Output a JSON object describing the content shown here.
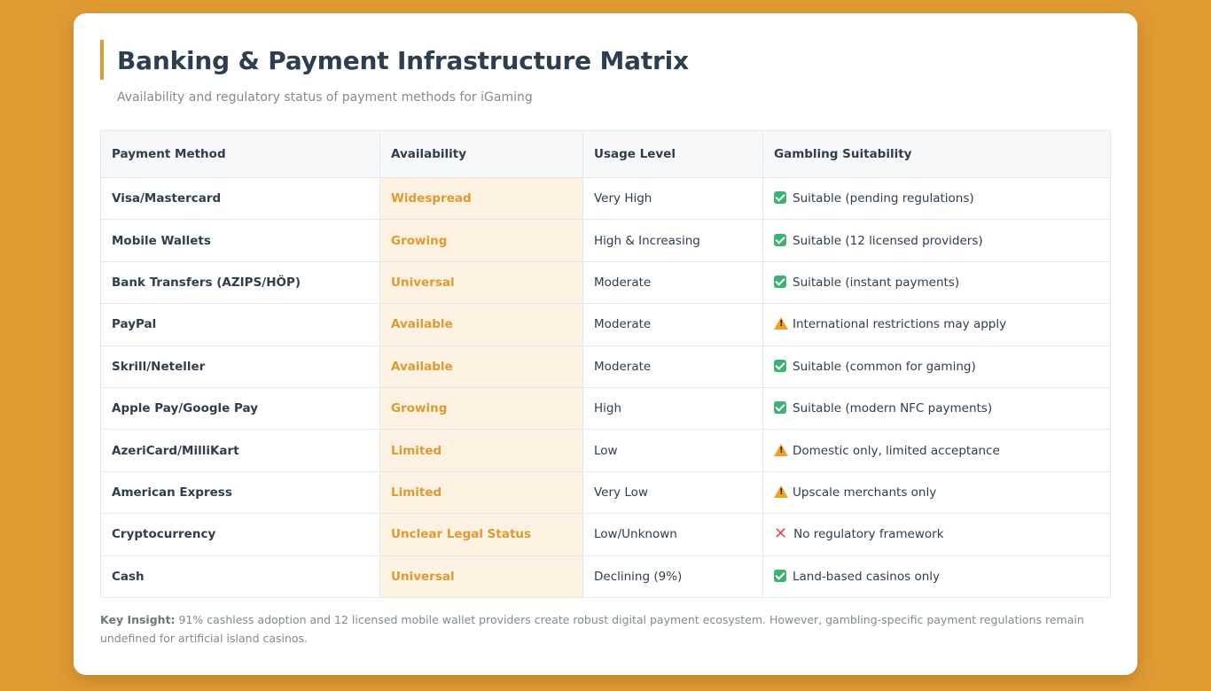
{
  "header": {
    "title": "Banking & Payment Infrastructure Matrix",
    "subtitle": "Availability and regulatory status of payment methods for iGaming"
  },
  "colors": {
    "background": "#df9a33",
    "accent": "#df9a33",
    "availability_bg": "#fdf1e1",
    "suitable": "#3cb371",
    "warning": "#f0a12a",
    "unsuitable": "#e8475f"
  },
  "table": {
    "headers": [
      "Payment Method",
      "Availability",
      "Usage Level",
      "Gambling Suitability"
    ],
    "rows": [
      {
        "method": "Visa/Mastercard",
        "availability": "Widespread",
        "usage": "Very High",
        "status_icon": "check-icon",
        "suitability": "Suitable (pending regulations)"
      },
      {
        "method": "Mobile Wallets",
        "availability": "Growing",
        "usage": "High & Increasing",
        "status_icon": "check-icon",
        "suitability": "Suitable (12 licensed providers)"
      },
      {
        "method": "Bank Transfers (AZIPS/HÖP)",
        "availability": "Universal",
        "usage": "Moderate",
        "status_icon": "check-icon",
        "suitability": "Suitable (instant payments)"
      },
      {
        "method": "PayPal",
        "availability": "Available",
        "usage": "Moderate",
        "status_icon": "warning-icon",
        "suitability": "International restrictions may apply"
      },
      {
        "method": "Skrill/Neteller",
        "availability": "Available",
        "usage": "Moderate",
        "status_icon": "check-icon",
        "suitability": "Suitable (common for gaming)"
      },
      {
        "method": "Apple Pay/Google Pay",
        "availability": "Growing",
        "usage": "High",
        "status_icon": "check-icon",
        "suitability": "Suitable (modern NFC payments)"
      },
      {
        "method": "AzeriCard/MilliKart",
        "availability": "Limited",
        "usage": "Low",
        "status_icon": "warning-icon",
        "suitability": "Domestic only, limited acceptance"
      },
      {
        "method": "American Express",
        "availability": "Limited",
        "usage": "Very Low",
        "status_icon": "warning-icon",
        "suitability": "Upscale merchants only"
      },
      {
        "method": "Cryptocurrency",
        "availability": "Unclear Legal Status",
        "usage": "Low/Unknown",
        "status_icon": "cross-icon",
        "suitability": "No regulatory framework"
      },
      {
        "method": "Cash",
        "availability": "Universal",
        "usage": "Declining (9%)",
        "status_icon": "check-icon",
        "suitability": "Land-based casinos only"
      }
    ]
  },
  "insight": {
    "label": "Key Insight:",
    "text": "91% cashless adoption and 12 licensed mobile wallet providers create robust digital payment ecosystem. However, gambling-specific payment regulations remain undefined for artificial island casinos."
  }
}
